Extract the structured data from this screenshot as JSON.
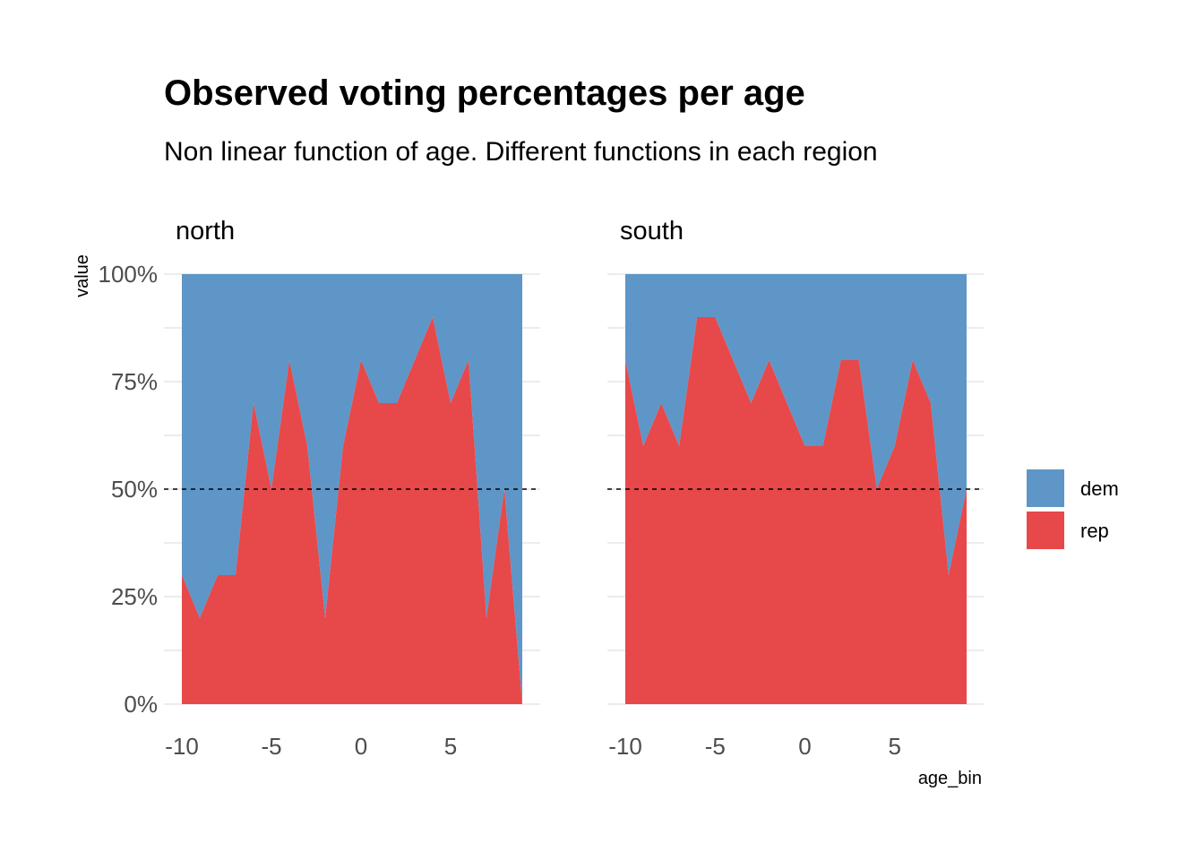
{
  "chart_data": {
    "type": "area",
    "title": "Observed voting percentages per age",
    "subtitle": "Non linear function of age. Different functions in each region",
    "xlabel": "age_bin",
    "ylabel": "value",
    "xlim": [
      -10,
      9
    ],
    "ylim": [
      0,
      1
    ],
    "x_ticks": [
      -10,
      -5,
      0,
      5
    ],
    "x_tick_labels": [
      "-10",
      "-5",
      "0",
      "5"
    ],
    "y_ticks": [
      0,
      0.25,
      0.5,
      0.75,
      1
    ],
    "y_tick_labels": [
      "0%",
      "25%",
      "50%",
      "75%",
      "100%"
    ],
    "stacked": true,
    "reference_line": {
      "y": 0.5,
      "style": "dashed",
      "color": "#000000"
    },
    "grid": true,
    "legend": {
      "position": "right",
      "entries": [
        {
          "label": "dem",
          "color": "#5e96c7"
        },
        {
          "label": "rep",
          "color": "#e7484a"
        }
      ]
    },
    "panels": [
      {
        "name": "north",
        "x": [
          -10,
          -9,
          -8,
          -7,
          -6,
          -5,
          -4,
          -3,
          -2,
          -1,
          0,
          1,
          2,
          3,
          4,
          5,
          6,
          7,
          8,
          9
        ],
        "series": [
          {
            "name": "rep",
            "values": [
              0.3,
              0.2,
              0.3,
              0.3,
              0.7,
              0.5,
              0.8,
              0.6,
              0.2,
              0.6,
              0.8,
              0.7,
              0.7,
              0.8,
              0.9,
              0.7,
              0.8,
              0.2,
              0.5,
              0.0
            ]
          },
          {
            "name": "dem",
            "values": [
              0.7,
              0.8,
              0.7,
              0.7,
              0.3,
              0.5,
              0.2,
              0.4,
              0.8,
              0.4,
              0.2,
              0.3,
              0.3,
              0.2,
              0.1,
              0.3,
              0.2,
              0.8,
              0.5,
              1.0
            ]
          }
        ]
      },
      {
        "name": "south",
        "x": [
          -10,
          -9,
          -8,
          -7,
          -6,
          -5,
          -4,
          -3,
          -2,
          -1,
          0,
          1,
          2,
          3,
          4,
          5,
          6,
          7,
          8,
          9
        ],
        "series": [
          {
            "name": "rep",
            "values": [
              0.8,
              0.6,
              0.7,
              0.6,
              0.9,
              0.9,
              0.8,
              0.7,
              0.8,
              0.7,
              0.6,
              0.6,
              0.8,
              0.8,
              0.5,
              0.6,
              0.8,
              0.7,
              0.3,
              0.5
            ]
          },
          {
            "name": "dem",
            "values": [
              0.2,
              0.4,
              0.3,
              0.4,
              0.1,
              0.1,
              0.2,
              0.3,
              0.2,
              0.3,
              0.4,
              0.4,
              0.2,
              0.2,
              0.5,
              0.4,
              0.2,
              0.3,
              0.7,
              0.5
            ]
          }
        ]
      }
    ]
  }
}
